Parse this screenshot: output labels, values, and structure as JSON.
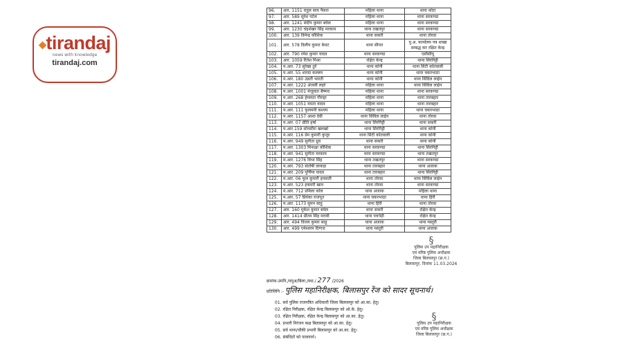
{
  "logo": {
    "brand": "tirandaj",
    "tagline": "news with knowledge",
    "url": "tirandaj.com"
  },
  "table": {
    "rows": [
      [
        "96.",
        "आर. 1151 राहुल साय पैकरा",
        "महिला थाना",
        "थाना कोटा"
      ],
      [
        "97.",
        "आर. 589 सुरेश पटेल",
        "महिला थाना",
        "थाना सरकण्डा"
      ],
      [
        "98.",
        "आर. 1241 संदीप कुमार बघेल",
        "महिला थाना",
        "थाना सरकण्डा"
      ],
      [
        "99.",
        "आर. 1230 चंद्रशेखर सिंह मरकाम",
        "थाना तखतपुर",
        "थाना सरकण्डा"
      ],
      [
        "100.",
        "आर. 139 विनेन्द्र कौशिक",
        "थाना सकरी",
        "थाना तोरवा"
      ],
      [
        "101.",
        "आर. 578 दिलीप कुमार केवट",
        "थाना सीपत",
        "पु.अ. कार्यालय पत्र शाखा सम्बद्ध कर रक्षित केन्द्र"
      ],
      [
        "102.",
        "आर. 790 रमेश कुमार यादव",
        "थाना सरकण्डा",
        "एसीसीयू"
      ],
      [
        "103.",
        "आर. 1059 रितेश मिश्रा",
        "रक्षित केन्द्र",
        "थाना सिरगिट्टी"
      ],
      [
        "104.",
        "म.आर. 73 सुरेखा ठुर्रे",
        "थाना कोनी",
        "थाना सिटी कोतवाली"
      ],
      [
        "105.",
        "म.आर. 55 शारदा कल्लम",
        "थाना कोनी",
        "थाना चकरभाठा"
      ],
      [
        "106.",
        "म.आर. 180 उन्नती भारती",
        "थाना कोनी",
        "थाना सिविल लाईन"
      ],
      [
        "107.",
        "म.आर. 1222 अंजली लहरे",
        "महिला थाना",
        "थाना सिविल लाईन"
      ],
      [
        "108.",
        "म.आर. 1001 मंजूलता बैष्णव",
        "महिला थाना",
        "थाना सरकण्डा"
      ],
      [
        "109.",
        "म.आर. 268 हेमलता गौराहा",
        "महिला थाना",
        "थाना तारबहार"
      ],
      [
        "110.",
        "म.आर. 1051 ममता यादव",
        "महिला थाना",
        "थाना तारबहार"
      ],
      [
        "111.",
        "म.आर. 111 फूलमनी कश्यप",
        "महिला थाना",
        "थाना चकरभाठा"
      ],
      [
        "112.",
        "म.आर. 1157 आशा देवी",
        "थाना सिविल लाईन",
        "थाना तोरवा"
      ],
      [
        "113.",
        "म.आर. 07 प्रीति हर्षा",
        "थाना सिरगिट्टी",
        "थाना सकरी"
      ],
      [
        "114.",
        "म.आर.159 सोनसीरा खलखो",
        "थाना सिरगिट्टी",
        "थाना कोनी"
      ],
      [
        "115.",
        "म.आर. 116 प्रेम कुमारी कुजूर",
        "थाना सिटी कोतवाली",
        "थाना कोनी"
      ],
      [
        "116.",
        "म.आर. 949 सुनीता ध्रुव",
        "थाना सकरी",
        "थाना कोनी"
      ],
      [
        "117.",
        "म.आर. 1303 मिनाक्षा कौशिक",
        "थाना सरकण्डा",
        "थाना सिरगिट्टी"
      ],
      [
        "118.",
        "म.आर. 941 सुनीता मरकाम",
        "थाना सरकण्डा",
        "थाना तखतपुर"
      ],
      [
        "119.",
        "म.आर. 1276 विभा सिंह",
        "थाना तखतपुर",
        "थाना सरकण्डा"
      ],
      [
        "120.",
        "म.आर. 793 संतोषी लाकड़ा",
        "थाना तारबहार",
        "थाना अजाक"
      ],
      [
        "121.",
        "म.आर. 209 पूर्णिमा यादव",
        "थाना तारबहार",
        "थाना सिरगिट्टी"
      ],
      [
        "122.",
        "म.आर. 06 फूल कुमारी इनवाती",
        "थाना तोरवा",
        "थाना सिविल लाईन"
      ],
      [
        "123.",
        "म.आर. 523 इफ्तारी खान",
        "थाना तोरवा",
        "थाना सरकण्डा"
      ],
      [
        "124.",
        "म.आर. 712 प्रमिला कोल",
        "थाना अजाक",
        "महिला थाना"
      ],
      [
        "125.",
        "म.आर. 57 प्रियंका राजपूत",
        "थाना चकरभाठा",
        "थाना हिर्री"
      ],
      [
        "126.",
        "म.आर. 1173 सुमन साहू",
        "थाना हिर्री",
        "थाना तोरवा"
      ],
      [
        "127.",
        "आर. 160 मुकेश कुमार बघेल",
        "थाना सकरी",
        "रक्षित केन्द्र"
      ],
      [
        "128.",
        "आर. 1414 प्रीतम सिंह मरावी",
        "थाना पचपेड़ी",
        "रक्षित केन्द्र"
      ],
      [
        "129.",
        "आर. 494 विजय कुमार साहू",
        "थाना अजाक",
        "थाना मस्तूरी"
      ],
      [
        "130.",
        "आर. 499 एमेश्वरम दिग्गज",
        "थाना मस्तूरी",
        "थाना अजाक"
      ]
    ]
  },
  "signature1": {
    "lines": [
      "पुलिस उप महानिरीक्षक",
      "एवं वरिष्ठ पुलिस अधीक्षक",
      "जिला बिलासपुर (छ.ग.)",
      "बिलासपुर, दिनांक 11.03.2026"
    ]
  },
  "reference": {
    "prefix": "क्रमांक-उमनि./वपुअ/बिला./स्था./",
    "number": "277",
    "year": "/2026"
  },
  "copy": {
    "label": "प्रतिलिपि :-",
    "handwritten": "पुलिस महानिरीक्षक, बिलासपुर रेंज को सादर सूचनार्थ।"
  },
  "copy_list": [
    "01. सर्व पुलिस राजपत्रित अधिकारी जिला बिलासपुर को आ.का. हेतु।",
    "02. रक्षित निरीक्षक, रक्षित केन्द्र बिलासपुर को ओ.के. हेतु।",
    "03. रक्षित निरीक्षक, रक्षित केन्द्र बिलासपुर को आ.का. हेतु।",
    "04. प्रभारी निरंजन कक्ष बिलासपुर को आ.का. हेतु।",
    "05. सर्व थाना/चौकी प्रभारी बिलासपुर को आ.का. हेतु।",
    "06. संबंधितों को पालनार्थ।"
  ],
  "signature2": {
    "lines": [
      "पुलिस उप महानिरीक्षक",
      "एवं वरिष्ठ पुलिस अधीक्षक",
      "जिला बिलासपुर (छ.ग.)"
    ]
  }
}
